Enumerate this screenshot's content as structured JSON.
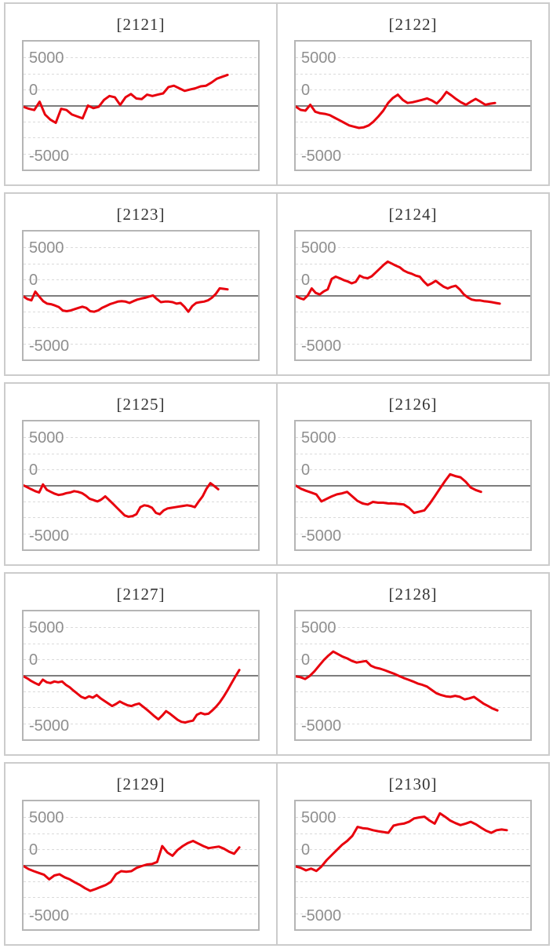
{
  "colors": {
    "line": "#e8000d",
    "zero_line": "#7d7d7d",
    "gridline": "#dadada",
    "plot_border": "#b5b5b5",
    "cell_border": "#cccccc",
    "axis_label": "#8f8f8f",
    "title_text": "#333333"
  },
  "axis": {
    "labels": [
      "5000",
      "0",
      "-5000"
    ],
    "ymax": 5000,
    "ymin": -5000,
    "grid_interval": 1250
  },
  "chart_data": [
    {
      "type": "line",
      "title": "[2121]",
      "ylim": [
        -5000,
        5000
      ],
      "x_end_frac": 0.87,
      "values": [
        -100,
        -250,
        -350,
        300,
        -700,
        -1100,
        -1350,
        -250,
        -350,
        -700,
        -850,
        -1000,
        0,
        -200,
        -100,
        450,
        750,
        650,
        50,
        650,
        900,
        550,
        500,
        850,
        750,
        850,
        950,
        1450,
        1550,
        1350,
        1150,
        1250,
        1350,
        1500,
        1550,
        1800,
        2100,
        2250,
        2400
      ]
    },
    {
      "type": "line",
      "title": "[2122]",
      "ylim": [
        -5000,
        5000
      ],
      "x_end_frac": 0.85,
      "values": [
        -80,
        -340,
        -400,
        60,
        -480,
        -600,
        -650,
        -750,
        -950,
        -1150,
        -1350,
        -1550,
        -1650,
        -1750,
        -1700,
        -1550,
        -1250,
        -850,
        -400,
        200,
        600,
        850,
        450,
        200,
        260,
        350,
        450,
        560,
        400,
        160,
        550,
        1070,
        800,
        500,
        250,
        60,
        300,
        520,
        300,
        60,
        150,
        200
      ]
    },
    {
      "type": "line",
      "title": "[2123]",
      "ylim": [
        -5000,
        5000
      ],
      "x_end_frac": 0.87,
      "values": [
        -80,
        -280,
        -380,
        300,
        -80,
        -440,
        -640,
        -680,
        -780,
        -910,
        -1170,
        -1230,
        -1170,
        -1070,
        -970,
        -880,
        -970,
        -1230,
        -1270,
        -1170,
        -970,
        -830,
        -680,
        -580,
        -480,
        -440,
        -480,
        -580,
        -440,
        -320,
        -240,
        -180,
        -80,
        0,
        -280,
        -520,
        -480,
        -480,
        -520,
        -640,
        -580,
        -880,
        -1270,
        -830,
        -580,
        -520,
        -480,
        -380,
        -180,
        120,
        560,
        520,
        480
      ]
    },
    {
      "type": "line",
      "title": "[2124]",
      "ylim": [
        -5000,
        5000
      ],
      "x_end_frac": 0.87,
      "values": [
        -50,
        -200,
        -300,
        0,
        550,
        200,
        80,
        320,
        480,
        1300,
        1470,
        1350,
        1200,
        1100,
        950,
        1070,
        1550,
        1400,
        1350,
        1500,
        1800,
        2100,
        2400,
        2650,
        2500,
        2340,
        2200,
        1950,
        1800,
        1700,
        1550,
        1470,
        1100,
        800,
        950,
        1150,
        900,
        680,
        550,
        680,
        760,
        480,
        100,
        -150,
        -320,
        -380,
        -380,
        -440,
        -480,
        -520,
        -580,
        -640
      ]
    },
    {
      "type": "line",
      "title": "[2125]",
      "ylim": [
        -5000,
        5000
      ],
      "x_end_frac": 0.83,
      "values": [
        0,
        -150,
        -300,
        -450,
        -550,
        80,
        -350,
        -500,
        -650,
        -750,
        -700,
        -600,
        -550,
        -450,
        -500,
        -600,
        -800,
        -1050,
        -1150,
        -1250,
        -1100,
        -850,
        -1150,
        -1450,
        -1750,
        -2050,
        -2350,
        -2450,
        -2400,
        -2250,
        -1700,
        -1550,
        -1600,
        -1750,
        -2150,
        -2250,
        -1950,
        -1800,
        -1750,
        -1700,
        -1650,
        -1600,
        -1550,
        -1600,
        -1700,
        -1250,
        -850,
        -250,
        180,
        -50,
        -300
      ]
    },
    {
      "type": "line",
      "title": "[2126]",
      "ylim": [
        -5000,
        5000
      ],
      "x_end_frac": 0.79,
      "values": [
        -20,
        -260,
        -420,
        -560,
        -700,
        -1250,
        -1050,
        -860,
        -700,
        -620,
        -500,
        -860,
        -1210,
        -1410,
        -1490,
        -1290,
        -1350,
        -1350,
        -1410,
        -1410,
        -1450,
        -1490,
        -1750,
        -2150,
        -2050,
        -1950,
        -1450,
        -860,
        -260,
        340,
        870,
        730,
        640,
        300,
        -160,
        -360,
        -500
      ]
    },
    {
      "type": "line",
      "title": "[2127]",
      "ylim": [
        -5000,
        5000
      ],
      "x_end_frac": 0.92,
      "values": [
        -80,
        -240,
        -440,
        -600,
        -740,
        -340,
        -540,
        -600,
        -480,
        -540,
        -480,
        -740,
        -940,
        -1200,
        -1440,
        -1680,
        -1800,
        -1640,
        -1740,
        -1540,
        -1800,
        -2000,
        -2200,
        -2400,
        -2240,
        -2040,
        -2200,
        -2340,
        -2400,
        -2280,
        -2200,
        -2440,
        -2680,
        -2940,
        -3200,
        -3440,
        -3140,
        -2800,
        -3000,
        -3240,
        -3480,
        -3640,
        -3680,
        -3600,
        -3540,
        -3080,
        -2940,
        -3040,
        -3000,
        -2740,
        -2440,
        -2080,
        -1640,
        -1140,
        -600,
        -80,
        420
      ]
    },
    {
      "type": "line",
      "title": "[2128]",
      "ylim": [
        -5000,
        5000
      ],
      "x_end_frac": 0.86,
      "values": [
        -80,
        -140,
        -280,
        -40,
        320,
        760,
        1200,
        1560,
        1860,
        1660,
        1460,
        1320,
        1120,
        1000,
        1060,
        1120,
        760,
        600,
        520,
        400,
        260,
        120,
        -40,
        -200,
        -340,
        -480,
        -640,
        -740,
        -880,
        -1140,
        -1400,
        -1540,
        -1640,
        -1680,
        -1600,
        -1680,
        -1880,
        -1800,
        -1680,
        -1940,
        -2200,
        -2400,
        -2600,
        -2740
      ]
    },
    {
      "type": "line",
      "title": "[2129]",
      "ylim": [
        -5000,
        5000
      ],
      "x_end_frac": 0.92,
      "values": [
        -60,
        -300,
        -460,
        -600,
        -740,
        -1100,
        -800,
        -700,
        -940,
        -1100,
        -1340,
        -1540,
        -1800,
        -2000,
        -1860,
        -1700,
        -1540,
        -1300,
        -700,
        -460,
        -500,
        -460,
        -200,
        -60,
        60,
        100,
        260,
        1500,
        1000,
        740,
        1200,
        1500,
        1740,
        1900,
        1700,
        1500,
        1340,
        1400,
        1460,
        1300,
        1060,
        900,
        1400
      ]
    },
    {
      "type": "line",
      "title": "[2130]",
      "ylim": [
        -5000,
        5000
      ],
      "x_end_frac": 0.9,
      "values": [
        -100,
        -200,
        -400,
        -260,
        -440,
        -100,
        400,
        800,
        1200,
        1600,
        1900,
        2300,
        3000,
        2900,
        2860,
        2740,
        2660,
        2600,
        2540,
        3100,
        3200,
        3260,
        3400,
        3660,
        3740,
        3800,
        3500,
        3260,
        4060,
        3800,
        3500,
        3300,
        3140,
        3260,
        3400,
        3200,
        2940,
        2700,
        2540,
        2740,
        2800,
        2740
      ]
    }
  ]
}
